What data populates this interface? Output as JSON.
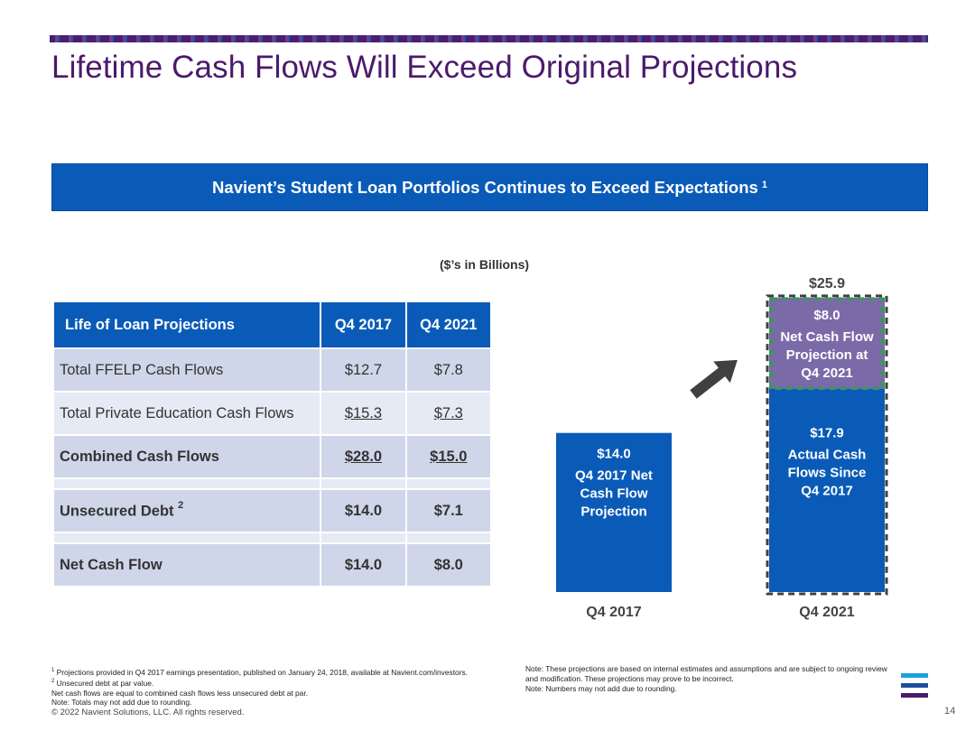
{
  "header": {
    "title": "Lifetime Cash Flows Will Exceed Original Projections"
  },
  "banner": {
    "text": "Navient’s Student Loan Portfolios Continues to Exceed Expectations",
    "sup": "1"
  },
  "units": "($’s in Billions)",
  "table": {
    "headers": [
      "Life of Loan Projections",
      "Q4 2017",
      "Q4 2021"
    ],
    "rows": [
      {
        "label": "Total FFELP Cash Flows",
        "q4_2017": "$12.7",
        "q4_2021": "$7.8"
      },
      {
        "label": "Total Private Education Cash Flows",
        "q4_2017": "$15.3",
        "q4_2021": "$7.3"
      },
      {
        "label": "Combined Cash Flows",
        "q4_2017": "$28.0",
        "q4_2021": "$15.0"
      },
      {
        "label": "Unsecured Debt",
        "sup": "2",
        "q4_2017": "$14.0",
        "q4_2021": "$7.1"
      },
      {
        "label": "Net Cash Flow",
        "q4_2017": "$14.0",
        "q4_2021": "$8.0"
      }
    ]
  },
  "chart_data": {
    "type": "bar",
    "stacked": true,
    "categories": [
      "Q4 2017",
      "Q4 2021"
    ],
    "series": [
      {
        "name": "Q4 2017 Net Cash Flow Projection",
        "values": [
          14.0,
          null
        ],
        "color": "#0a5bb8"
      },
      {
        "name": "Actual Cash Flows Since Q4 2017",
        "values": [
          null,
          17.9
        ],
        "color": "#0a5bb8"
      },
      {
        "name": "Net Cash Flow Projection at Q4 2021",
        "values": [
          null,
          8.0
        ],
        "color": "#7b6aa8"
      }
    ],
    "segment_labels": [
      {
        "value": "$14.0",
        "text": [
          "Q4 2017 Net",
          "Cash Flow",
          "Projection"
        ]
      },
      {
        "value": "$17.9",
        "text": [
          "Actual Cash",
          "Flows Since",
          "Q4 2017"
        ]
      },
      {
        "value": "$8.0",
        "text": [
          "Net Cash Flow",
          "Projection at",
          "Q4 2021"
        ]
      }
    ],
    "totals": [
      "",
      "$25.9"
    ],
    "title": "",
    "xlabel": "",
    "ylabel": "",
    "ylim": [
      0,
      27
    ]
  },
  "colors": {
    "title": "#4b1a6b",
    "primary_blue": "#0a5bb8",
    "purple_segment": "#7b6aa8",
    "table_row": "#cfd6e9",
    "table_row_light": "#e6eaf4",
    "arrow": "#404040",
    "dashed_outline_total": "#404040",
    "dashed_outline_segment": "#2e9e4f"
  },
  "footnotes": [
    {
      "sup": "1",
      "text": "Projections provided in Q4 2017 earnings presentation, published on January 24, 2018, available at Navient.com/investors."
    },
    {
      "sup": "2",
      "text": "Unsecured debt at par value."
    },
    {
      "sup": "",
      "text": "Net cash flows are equal to combined cash flows less unsecured debt at par."
    },
    {
      "sup": "",
      "text": "Note: Totals may not add due to rounding."
    }
  ],
  "notes": [
    "Note: These projections are based on internal estimates and assumptions and are subject to ongoing review and modification. These projections may prove to be incorrect.",
    "Note: Numbers may not add due to rounding."
  ],
  "footer": {
    "copyright": "© 2022 Navient Solutions, LLC. All rights reserved.",
    "page_number": "14"
  }
}
